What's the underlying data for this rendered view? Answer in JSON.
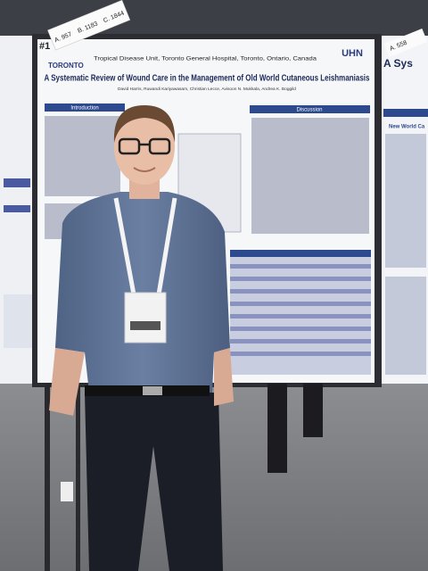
{
  "photo": {
    "poster_number": "#1",
    "tags": [
      "A. 957",
      "B. 1183",
      "C. 1844"
    ],
    "poster": {
      "institution": "Tropical Disease Unit, Toronto General Hospital, Toronto, Ontario, Canada",
      "title": "A Systematic Review of Wound Care in the Management of Old World Cutaneous Leishmaniasis",
      "authors": "David Harris, Ruwandi Kariyawasam, Christian Lecce, Avisoon N. Mukkala, Andrea K. Boggild",
      "left_logo": "TORONTO",
      "right_logo": "UHN",
      "sections": [
        "Introduction",
        "Discussion"
      ]
    },
    "right_poster": {
      "tag": "A. 558",
      "title": "A Sys",
      "heading": "New World Ca"
    }
  }
}
